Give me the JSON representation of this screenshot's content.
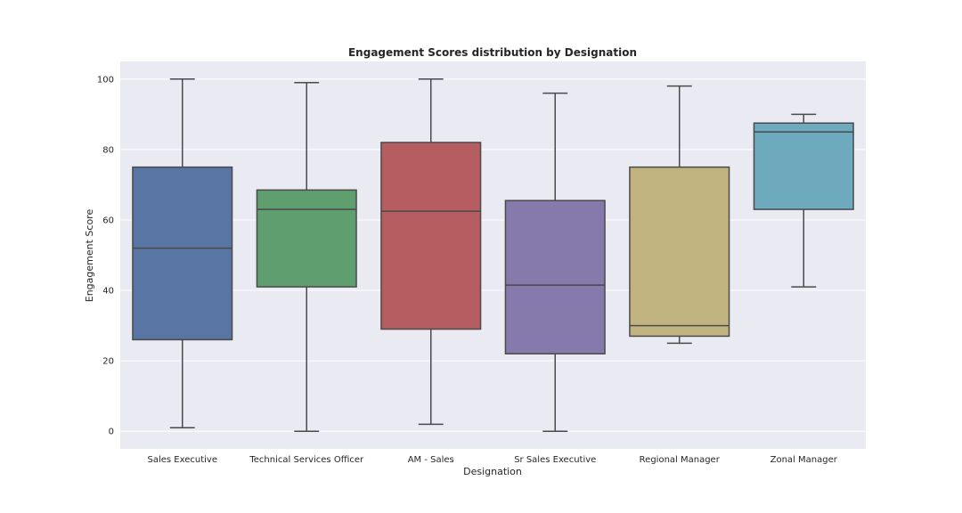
{
  "chart_data": {
    "type": "box",
    "title": "Engagement Scores distribution by Designation",
    "xlabel": "Designation",
    "ylabel": "Engagement Score",
    "ylim": [
      -5,
      105
    ],
    "yticks": [
      0,
      20,
      40,
      60,
      80,
      100
    ],
    "grid": true,
    "categories": [
      "Sales Executive",
      "Technical Services Officer",
      "AM - Sales",
      "Sr Sales Executive",
      "Regional Manager",
      "Zonal Manager"
    ],
    "boxes": [
      {
        "min": 1,
        "q1": 26,
        "median": 52,
        "q3": 75,
        "max": 100,
        "color": "#5875a4"
      },
      {
        "min": 0,
        "q1": 41,
        "median": 63,
        "q3": 68.5,
        "max": 99,
        "color": "#5f9e6e"
      },
      {
        "min": 2,
        "q1": 29,
        "median": 62.5,
        "q3": 82,
        "max": 100,
        "color": "#b55d60"
      },
      {
        "min": 0,
        "q1": 22,
        "median": 41.5,
        "q3": 65.5,
        "max": 96,
        "color": "#857aab"
      },
      {
        "min": 25,
        "q1": 27,
        "median": 30,
        "q3": 75,
        "max": 98,
        "color": "#c1b37f"
      },
      {
        "min": 41,
        "q1": 63,
        "median": 85,
        "q3": 87.5,
        "max": 90,
        "color": "#6eaabe"
      }
    ]
  }
}
